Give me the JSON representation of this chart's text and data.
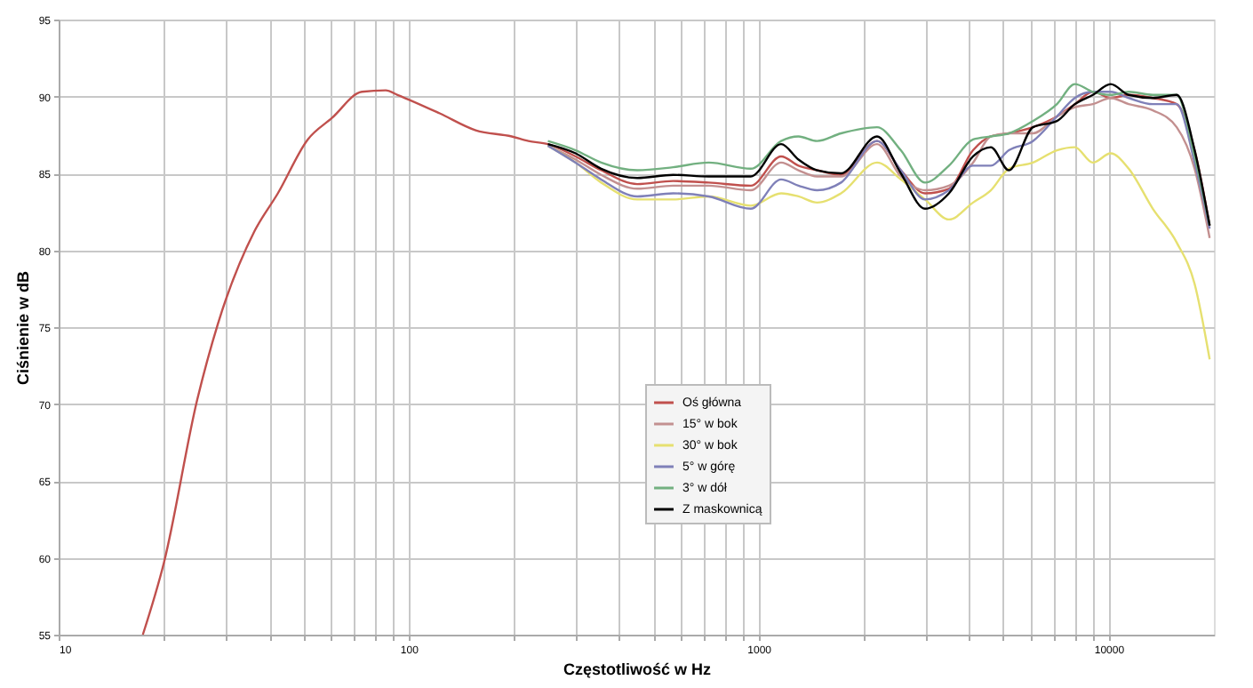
{
  "chart_data": {
    "type": "line",
    "xlabel": "Częstotliwość w Hz",
    "ylabel": "Ciśnienie w dB",
    "log": "x",
    "grid": true,
    "legend": "bottom",
    "line_style": "solid",
    "marker": "none",
    "xlim": [
      10,
      20000
    ],
    "ylim": [
      55,
      95
    ],
    "yticks": [
      55,
      60,
      65,
      70,
      75,
      80,
      85,
      90,
      95
    ],
    "xticks": [
      10,
      {
        "value": 20,
        "label": null
      },
      {
        "value": 30,
        "label": null
      },
      {
        "value": 40,
        "label": null
      },
      {
        "value": 50,
        "label": null
      },
      {
        "value": 60,
        "label": null
      },
      {
        "value": 70,
        "label": null
      },
      {
        "value": 80,
        "label": null
      },
      {
        "value": 90,
        "label": null
      },
      100,
      {
        "value": 200,
        "label": null
      },
      {
        "value": 300,
        "label": null
      },
      {
        "value": 400,
        "label": null
      },
      {
        "value": 500,
        "label": null
      },
      {
        "value": 600,
        "label": null
      },
      {
        "value": 700,
        "label": null
      },
      {
        "value": 800,
        "label": null
      },
      {
        "value": 900,
        "label": null
      },
      1000,
      {
        "value": 2000,
        "label": null
      },
      {
        "value": 3000,
        "label": null
      },
      {
        "value": 4000,
        "label": null
      },
      {
        "value": 5000,
        "label": null
      },
      {
        "value": 6000,
        "label": null
      },
      {
        "value": 7000,
        "label": null
      },
      {
        "value": 8000,
        "label": null
      },
      {
        "value": 9000,
        "label": null
      },
      10000
    ],
    "x": [
      250,
      300,
      355,
      450,
      570,
      720,
      950,
      1160,
      1300,
      1470,
      1720,
      2180,
      2550,
      2990,
      3500,
      4100,
      4610,
      5190,
      6080,
      7120,
      8010,
      9020,
      10140,
      11420,
      13380,
      15660,
      17620,
      19450
    ],
    "series": [
      {
        "name": "Oś główna",
        "color": "#c0504d",
        "x": [
          17.4,
          20,
          24.9,
          28.5,
          36.2,
          42.3,
          51.5,
          60.4,
          73.5,
          86,
          93,
          122.7,
          155.5,
          197,
          220,
          250,
          300,
          355,
          450,
          570,
          720,
          950,
          1160,
          1300,
          1470,
          1720,
          2180,
          2550,
          2990,
          3500,
          4100,
          4610,
          5190,
          6080,
          7120,
          8010,
          9020,
          10140,
          11420,
          13380,
          15660,
          17620,
          19450
        ],
        "values": [
          55,
          59.7,
          70.3,
          75.2,
          81.2,
          83.7,
          87.2,
          88.6,
          90.3,
          90.4,
          90.1,
          88.9,
          87.8,
          87.4,
          87.1,
          86.9,
          86.1,
          85.2,
          84.3,
          84.5,
          84.4,
          84.2,
          86.1,
          85.5,
          85.2,
          84.9,
          87.1,
          85.2,
          83.7,
          84.0,
          86.5,
          87.4,
          87.6,
          88.0,
          88.7,
          89.5,
          90.3,
          89.9,
          90.1,
          89.9,
          89.5,
          86.5,
          81.6
        ]
      },
      {
        "name": "15° w bok",
        "color": "#c39090",
        "values": [
          86.8,
          85.9,
          84.9,
          84.0,
          84.2,
          84.2,
          83.9,
          85.7,
          85.2,
          84.8,
          84.8,
          86.9,
          84.8,
          83.9,
          84.2,
          85.7,
          87.4,
          87.6,
          87.6,
          88.7,
          89.3,
          89.5,
          89.9,
          89.5,
          89.1,
          88.0,
          85.3,
          80.8
        ]
      },
      {
        "name": "30° w bok",
        "color": "#e6e070",
        "values": [
          86.8,
          85.7,
          84.4,
          83.3,
          83.3,
          83.5,
          82.9,
          83.7,
          83.5,
          83.1,
          83.7,
          85.7,
          84.6,
          83.3,
          82.0,
          83.1,
          83.9,
          85.3,
          85.7,
          86.5,
          86.7,
          85.7,
          86.3,
          85.3,
          82.7,
          80.5,
          77.8,
          72.9
        ]
      },
      {
        "name": "5° w górę",
        "color": "#7f80b8",
        "values": [
          86.8,
          85.7,
          84.6,
          83.5,
          83.7,
          83.5,
          82.7,
          84.6,
          84.2,
          83.9,
          84.4,
          87.1,
          85.2,
          83.3,
          83.9,
          85.5,
          85.5,
          86.5,
          87.1,
          88.7,
          89.9,
          90.3,
          90.3,
          89.9,
          89.5,
          89.5,
          85.7,
          81.4
        ]
      },
      {
        "name": "3° w dół",
        "color": "#72b080",
        "values": [
          87.1,
          86.5,
          85.7,
          85.2,
          85.4,
          85.7,
          85.3,
          87.1,
          87.4,
          87.1,
          87.6,
          88.0,
          86.5,
          84.4,
          85.5,
          87.2,
          87.4,
          87.6,
          88.4,
          89.5,
          90.8,
          90.3,
          90.1,
          90.3,
          90.1,
          90.1,
          86.1,
          81.6
        ]
      },
      {
        "name": "Z maskownicą",
        "color": "#000000",
        "values": [
          86.9,
          86.3,
          85.3,
          84.7,
          84.9,
          84.8,
          84.8,
          86.9,
          85.9,
          85.2,
          85.0,
          87.4,
          85.0,
          82.7,
          83.7,
          86.1,
          86.7,
          85.2,
          88.0,
          88.4,
          89.5,
          90.1,
          90.8,
          90.1,
          89.9,
          90.1,
          86.5,
          81.6
        ]
      }
    ]
  }
}
